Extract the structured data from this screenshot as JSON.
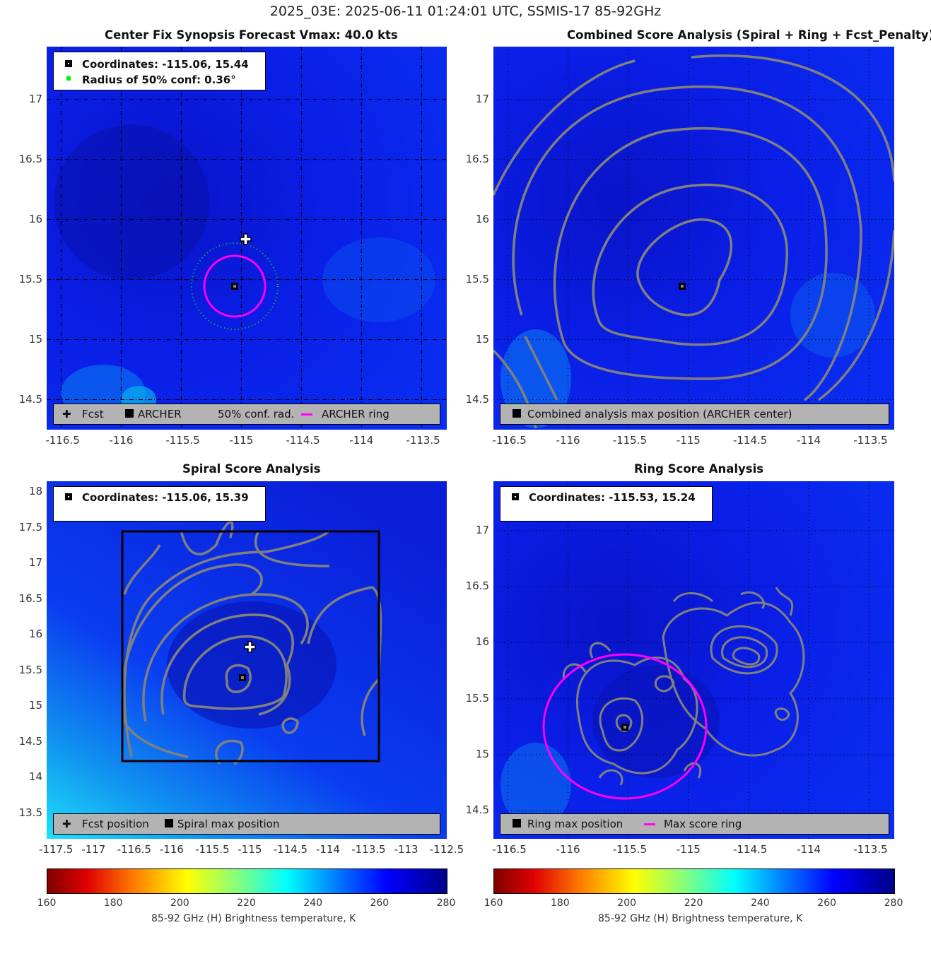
{
  "title": "2025_03E: 2025-06-11 01:24:01 UTC, SSMIS-17 85-92GHz",
  "panels": [
    {
      "title": "Center Fix Synopsis     Forecast Vmax: 40.0 kts",
      "xlim": [
        -116.62,
        -113.29
      ],
      "ylim": [
        14.25,
        17.44
      ],
      "xticks": [
        "-116.5",
        "-116",
        "-115.5",
        "-115",
        "-114.5",
        "-114",
        "-113.5"
      ],
      "yticks": [
        "14.5",
        "15",
        "15.5",
        "16",
        "16.5",
        "17"
      ],
      "legend": [
        "Coordinates: -115.06, 15.44",
        "Radius of 50% conf: 0.36°"
      ],
      "bottom_legend": [
        "Fcst",
        "ARCHER",
        "50% conf. rad.",
        "ARCHER ring"
      ]
    },
    {
      "title": "Combined Score Analysis (Spiral + Ring + Fcst_Penalty)",
      "xlim": [
        -116.62,
        -113.29
      ],
      "ylim": [
        14.25,
        17.44
      ],
      "xticks": [
        "-116.5",
        "-116",
        "-115.5",
        "-115",
        "-114.5",
        "-114",
        "-113.5"
      ],
      "yticks": [
        "14.5",
        "15",
        "15.5",
        "16",
        "16.5",
        "17"
      ],
      "bottom_legend": [
        "Combined analysis max position (ARCHER center)"
      ]
    },
    {
      "title": "Spiral Score Analysis",
      "xlim": [
        -117.6,
        -112.48
      ],
      "ylim": [
        13.14,
        18.15
      ],
      "xticks": [
        "-117.5",
        "-117",
        "-116.5",
        "-116",
        "-115.5",
        "-115",
        "-114.5",
        "-114",
        "-113.5",
        "-113",
        "-112.5"
      ],
      "yticks": [
        "13.5",
        "14",
        "14.5",
        "15",
        "15.5",
        "16",
        "16.5",
        "17",
        "17.5",
        "18"
      ],
      "legend": [
        "Coordinates: -115.06, 15.39"
      ],
      "bottom_legend": [
        "Fcst position",
        "Spiral max position"
      ]
    },
    {
      "title": "Ring Score Analysis",
      "xlim": [
        -116.62,
        -113.29
      ],
      "ylim": [
        14.25,
        17.44
      ],
      "xticks": [
        "-116.5",
        "-116",
        "-115.5",
        "-115",
        "-114.5",
        "-114",
        "-113.5"
      ],
      "yticks": [
        "14.5",
        "15",
        "15.5",
        "16",
        "16.5",
        "17"
      ],
      "legend": [
        "Coordinates: -115.53, 15.24"
      ],
      "bottom_legend": [
        "Ring max position",
        "Max score ring"
      ]
    }
  ],
  "colorbar": {
    "ticks": [
      "160",
      "180",
      "200",
      "220",
      "240",
      "260",
      "280"
    ],
    "label": "85-92 GHz (H) Brightness temperature, K"
  },
  "chart_data": {
    "type": "heatmap",
    "variable": "85-92 GHz (H) Brightness temperature, K",
    "clim": [
      160,
      280
    ],
    "archer_center": [
      -115.06,
      15.44
    ],
    "conf_radius_deg": 0.36,
    "spiral_max": [
      -115.06,
      15.39
    ],
    "ring_max": [
      -115.53,
      15.24
    ],
    "fcst_position": [
      -115.02,
      15.79
    ]
  },
  "colors": {
    "ring": "#ff00ff",
    "conf": "#00e000",
    "contour": "#808080"
  }
}
